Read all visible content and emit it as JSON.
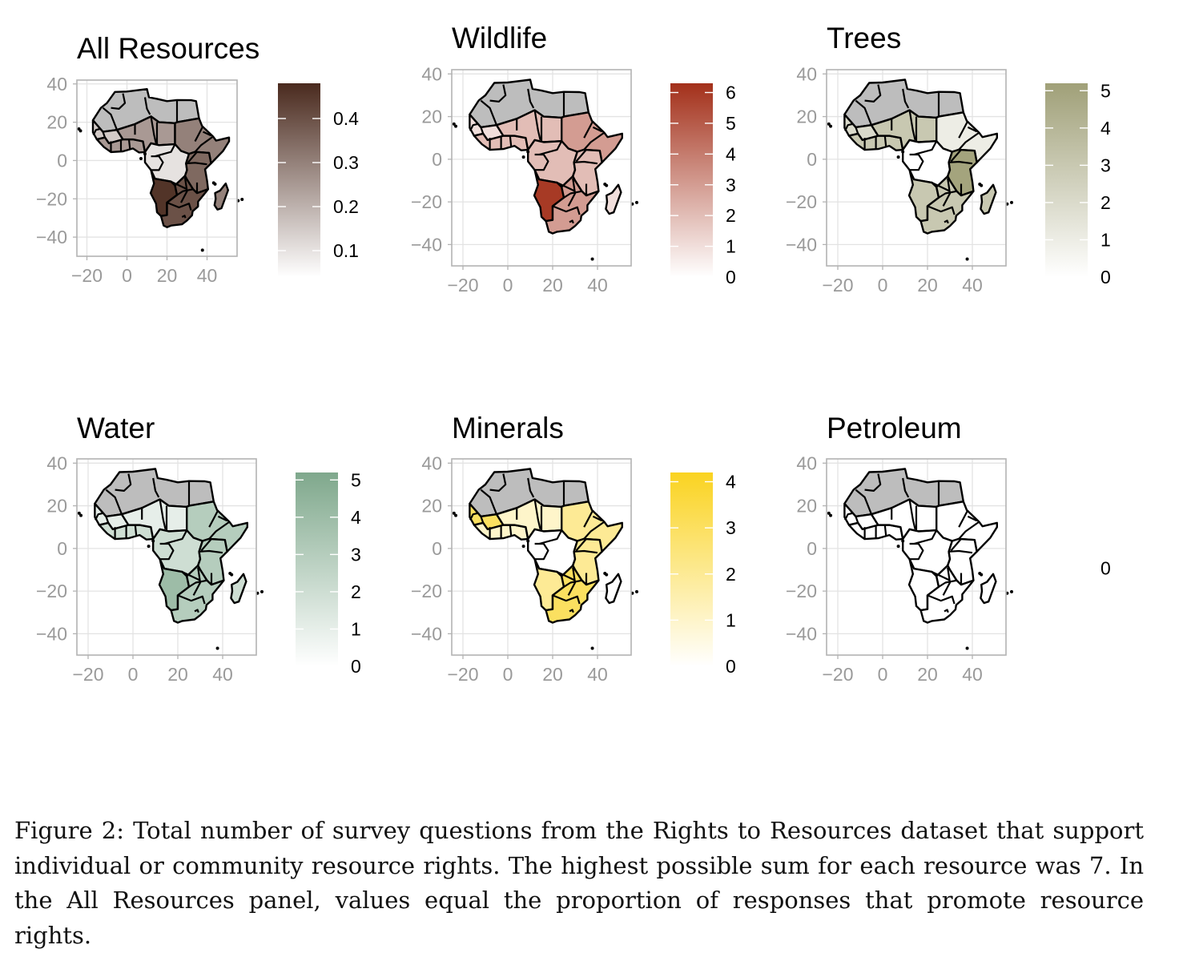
{
  "figure": {
    "caption": "Figure 2: Total number of survey questions from the Rights to Resources dataset that support individual or community resource rights. The highest possible sum for each resource was 7. In the All Resources panel, values equal the proportion of responses that promote resource rights."
  },
  "chart_data": [
    {
      "type": "choropleth",
      "title": "All Resources",
      "xlim": [
        -25,
        55
      ],
      "ylim": [
        -50,
        42
      ],
      "x_ticks": [
        -20,
        0,
        20,
        40
      ],
      "x_tick_labels": [
        "−20",
        "0",
        "20",
        "40"
      ],
      "y_ticks": [
        40,
        20,
        0,
        -20,
        -40
      ],
      "y_tick_labels": [
        "40",
        "20",
        "0",
        "−20",
        "−40"
      ],
      "grid": true,
      "legend": {
        "min": 0.04,
        "max": 0.48,
        "low_color": "#ffffff",
        "high_color": "#4a2a1e",
        "ticks": [
          0.1,
          0.2,
          0.3,
          0.4
        ],
        "labels": [
          "0.1",
          "0.2",
          "0.3",
          "0.4"
        ]
      },
      "no_data_color": "#bdbdbd",
      "region_values": {
        "north": null,
        "west_n": 0.15,
        "west_s": 0.25,
        "sahel": 0.25,
        "horn": 0.3,
        "central": 0.1,
        "east": 0.35,
        "southwest": 0.46,
        "southeast": 0.4,
        "mad": 0.3
      }
    },
    {
      "type": "choropleth",
      "title": "Wildlife",
      "xlim": [
        -25,
        55
      ],
      "ylim": [
        -50,
        42
      ],
      "x_ticks": [
        -20,
        0,
        20,
        40
      ],
      "x_tick_labels": [
        "−20",
        "0",
        "20",
        "40"
      ],
      "y_ticks": [
        40,
        20,
        0,
        -20,
        -40
      ],
      "y_tick_labels": [
        "40",
        "20",
        "0",
        "−20",
        "−40"
      ],
      "grid": true,
      "legend": {
        "min": 0,
        "max": 6.3,
        "low_color": "#ffffff",
        "high_color": "#a3301a",
        "ticks": [
          0,
          1,
          2,
          3,
          4,
          5,
          6
        ],
        "labels": [
          "0",
          "1",
          "2",
          "3",
          "4",
          "5",
          "6"
        ]
      },
      "no_data_color": "#bdbdbd",
      "region_values": {
        "north": null,
        "west_n": 1,
        "west_s": 2,
        "sahel": 2,
        "horn": 3,
        "central": 2,
        "east": 2,
        "southwest": 6,
        "southeast": 3,
        "mad": 1
      }
    },
    {
      "type": "choropleth",
      "title": "Trees",
      "xlim": [
        -25,
        55
      ],
      "ylim": [
        -50,
        42
      ],
      "x_ticks": [
        -20,
        0,
        20,
        40
      ],
      "x_tick_labels": [
        "−20",
        "0",
        "20",
        "40"
      ],
      "y_ticks": [
        40,
        20,
        0,
        -20,
        -40
      ],
      "y_tick_labels": [
        "40",
        "20",
        "0",
        "−20",
        "−40"
      ],
      "grid": true,
      "legend": {
        "min": 0,
        "max": 5.2,
        "low_color": "#ffffff",
        "high_color": "#a0a078",
        "ticks": [
          0,
          1,
          2,
          3,
          4,
          5
        ],
        "labels": [
          "0",
          "1",
          "2",
          "3",
          "4",
          "5"
        ]
      },
      "no_data_color": "#bdbdbd",
      "region_values": {
        "north": null,
        "west_n": 2,
        "west_s": 3,
        "sahel": 3,
        "horn": 1,
        "central": 0,
        "east": 5,
        "southwest": 3,
        "southeast": 3,
        "mad": 3
      }
    },
    {
      "type": "choropleth",
      "title": "Water",
      "xlim": [
        -25,
        55
      ],
      "ylim": [
        -50,
        42
      ],
      "x_ticks": [
        -20,
        0,
        20,
        40
      ],
      "x_tick_labels": [
        "−20",
        "0",
        "20",
        "40"
      ],
      "y_ticks": [
        40,
        20,
        0,
        -20,
        -40
      ],
      "y_tick_labels": [
        "40",
        "20",
        "0",
        "−20",
        "−40"
      ],
      "grid": true,
      "legend": {
        "min": 0,
        "max": 5.2,
        "low_color": "#ffffff",
        "high_color": "#7fa88c",
        "ticks": [
          0,
          1,
          2,
          3,
          4,
          5
        ],
        "labels": [
          "0",
          "1",
          "2",
          "3",
          "4",
          "5"
        ]
      },
      "no_data_color": "#bdbdbd",
      "region_values": {
        "north": null,
        "west_n": 1,
        "west_s": 2,
        "sahel": 1,
        "horn": 3,
        "central": 2,
        "east": 3,
        "southwest": 4,
        "southeast": 3,
        "mad": 2
      }
    },
    {
      "type": "choropleth",
      "title": "Minerals",
      "xlim": [
        -25,
        55
      ],
      "ylim": [
        -50,
        42
      ],
      "x_ticks": [
        -20,
        0,
        20,
        40
      ],
      "x_tick_labels": [
        "−20",
        "0",
        "20",
        "40"
      ],
      "y_ticks": [
        40,
        20,
        0,
        -20,
        -40
      ],
      "y_tick_labels": [
        "40",
        "20",
        "0",
        "−20",
        "−40"
      ],
      "grid": true,
      "legend": {
        "min": 0,
        "max": 4.2,
        "low_color": "#ffffff",
        "high_color": "#fad320",
        "ticks": [
          0,
          1,
          2,
          3,
          4
        ],
        "labels": [
          "0",
          "1",
          "2",
          "3",
          "4"
        ]
      },
      "no_data_color": "#bdbdbd",
      "region_values": {
        "north": null,
        "west_n": 3,
        "west_s": 1,
        "sahel": 1,
        "horn": 2,
        "central": 0,
        "east": 2,
        "southwest": 2,
        "southeast": 3,
        "mad": 0
      }
    },
    {
      "type": "choropleth",
      "title": "Petroleum",
      "xlim": [
        -25,
        55
      ],
      "ylim": [
        -50,
        42
      ],
      "x_ticks": [
        -20,
        0,
        20,
        40
      ],
      "x_tick_labels": [
        "−20",
        "0",
        "20",
        "40"
      ],
      "y_ticks": [
        40,
        20,
        0,
        -20,
        -40
      ],
      "y_tick_labels": [
        "40",
        "20",
        "0",
        "−20",
        "−40"
      ],
      "grid": true,
      "legend": {
        "min": 0,
        "max": 0,
        "low_color": "#ffffff",
        "high_color": "#ffffff",
        "ticks": [
          0
        ],
        "labels": [
          "0"
        ],
        "bar_visible": false
      },
      "no_data_color": "#bdbdbd",
      "region_values": {
        "north": null,
        "west_n": 0,
        "west_s": 0,
        "sahel": 0,
        "horn": 0,
        "central": 0,
        "east": 0,
        "southwest": 0,
        "southeast": 0,
        "mad": 0
      }
    }
  ]
}
